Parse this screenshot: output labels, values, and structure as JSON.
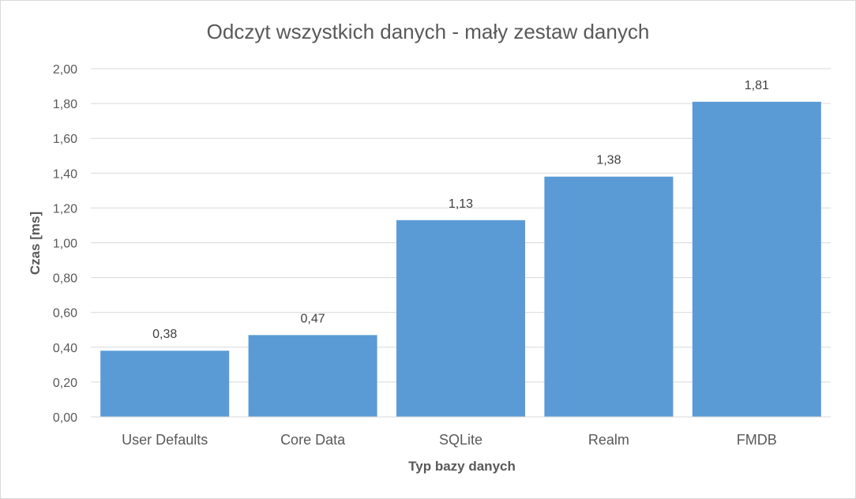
{
  "chart_data": {
    "type": "bar",
    "title": "Odczyt wszystkich danych - mały zestaw danych",
    "xlabel": "Typ bazy danych",
    "ylabel": "Czas [ms]",
    "categories": [
      "User Defaults",
      "Core Data",
      "SQLite",
      "Realm",
      "FMDB"
    ],
    "values": [
      0.38,
      0.47,
      1.13,
      1.38,
      1.81
    ],
    "data_labels": [
      "0,38",
      "0,47",
      "1,13",
      "1,38",
      "1,81"
    ],
    "ylim": [
      0,
      2
    ],
    "y_ticks": [
      "0,00",
      "0,20",
      "0,40",
      "0,60",
      "0,80",
      "1,00",
      "1,20",
      "1,40",
      "1,60",
      "1,80",
      "2,00"
    ],
    "grid": true,
    "legend": "none",
    "bar_color": "#5b9bd5",
    "grid_color": "#d9d9d9"
  }
}
